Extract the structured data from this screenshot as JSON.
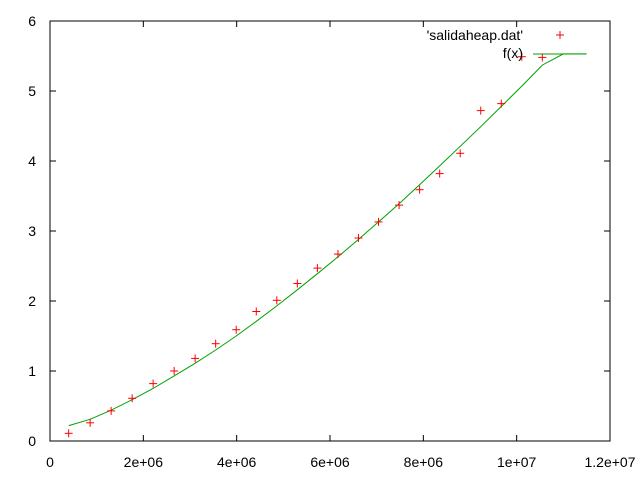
{
  "chart_data": {
    "type": "scatter",
    "title": "",
    "xlabel": "",
    "ylabel": "",
    "xlim": [
      0,
      12000000
    ],
    "ylim": [
      0,
      6
    ],
    "grid": false,
    "legend_position": "top-right",
    "x_ticks": [
      {
        "value": 0,
        "label": "0"
      },
      {
        "value": 2000000,
        "label": "2e+06"
      },
      {
        "value": 4000000,
        "label": "4e+06"
      },
      {
        "value": 6000000,
        "label": "6e+06"
      },
      {
        "value": 8000000,
        "label": "8e+06"
      },
      {
        "value": 10000000,
        "label": "1e+07"
      },
      {
        "value": 12000000,
        "label": "1.2e+07"
      }
    ],
    "y_ticks": [
      {
        "value": 0,
        "label": "0"
      },
      {
        "value": 1,
        "label": "1"
      },
      {
        "value": 2,
        "label": "2"
      },
      {
        "value": 3,
        "label": "3"
      },
      {
        "value": 4,
        "label": "4"
      },
      {
        "value": 5,
        "label": "5"
      },
      {
        "value": 6,
        "label": "6"
      }
    ],
    "series": [
      {
        "name": "'salidaheap.dat'",
        "style": "points",
        "marker": "plus",
        "color": "#ff0000",
        "x": [
          400000,
          860000,
          1310000,
          1760000,
          2210000,
          2660000,
          3110000,
          3550000,
          3990000,
          4420000,
          4860000,
          5300000,
          5730000,
          6170000,
          6610000,
          7040000,
          7480000,
          7920000,
          8350000,
          8790000,
          9230000,
          9670000,
          10110000,
          10550000
        ],
        "y": [
          0.11,
          0.26,
          0.43,
          0.61,
          0.82,
          1.0,
          1.18,
          1.39,
          1.59,
          1.85,
          2.01,
          2.25,
          2.47,
          2.67,
          2.9,
          3.13,
          3.37,
          3.59,
          3.82,
          4.11,
          4.72,
          4.82,
          5.49,
          5.48
        ]
      },
      {
        "name": "f(x)",
        "style": "line",
        "color": "#00a000",
        "x": [
          400000,
          860000,
          1310000,
          1760000,
          2210000,
          2660000,
          3110000,
          3550000,
          3990000,
          4420000,
          4860000,
          5300000,
          5730000,
          6170000,
          6610000,
          7040000,
          7480000,
          7920000,
          8350000,
          8790000,
          9230000,
          9670000,
          10110000,
          10550000,
          11000000,
          11500000
        ],
        "y": [
          0.22,
          0.31,
          0.44,
          0.59,
          0.75,
          0.93,
          1.11,
          1.3,
          1.5,
          1.71,
          1.93,
          2.16,
          2.39,
          2.63,
          2.88,
          3.13,
          3.39,
          3.66,
          3.93,
          4.21,
          4.49,
          4.78,
          5.07,
          5.37,
          5.53,
          5.53
        ]
      }
    ]
  }
}
